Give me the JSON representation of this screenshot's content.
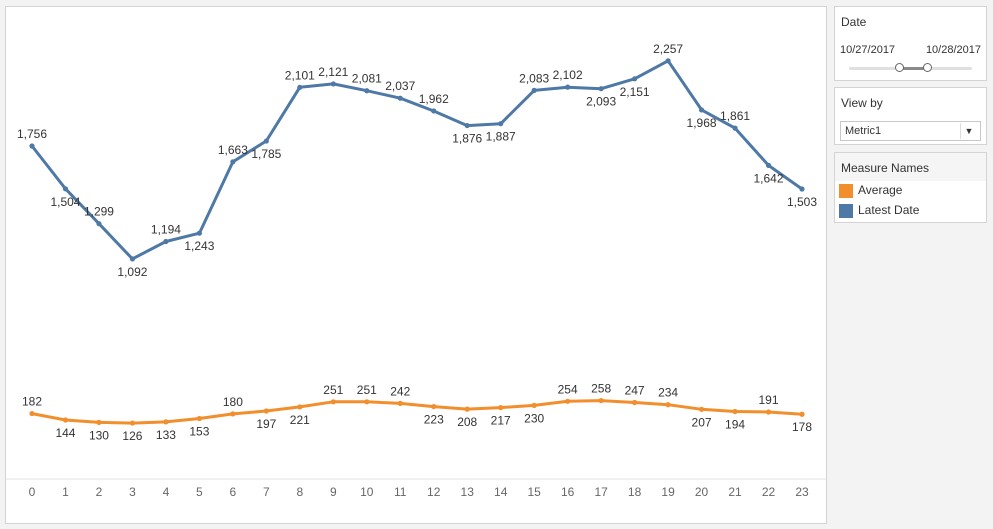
{
  "filters": {
    "date": {
      "title": "Date",
      "start": "10/27/2017",
      "end": "10/28/2017"
    },
    "view_by": {
      "title": "View by",
      "selected": "Metric1"
    }
  },
  "legend": {
    "title": "Measure Names",
    "items": [
      {
        "label": "Average",
        "color": "#f28e2b"
      },
      {
        "label": "Latest Date",
        "color": "#4e79a7"
      }
    ]
  },
  "chart_data": {
    "type": "line",
    "x": [
      0,
      1,
      2,
      3,
      4,
      5,
      6,
      7,
      8,
      9,
      10,
      11,
      12,
      13,
      14,
      15,
      16,
      17,
      18,
      19,
      20,
      21,
      22,
      23
    ],
    "x_tick_labels": [
      "0",
      "1",
      "2",
      "3",
      "4",
      "5",
      "6",
      "7",
      "8",
      "9",
      "10",
      "11",
      "12",
      "13",
      "14",
      "15",
      "16",
      "17",
      "18",
      "19",
      "20",
      "21",
      "22",
      "23"
    ],
    "series": [
      {
        "name": "Latest Date",
        "color": "#4e79a7",
        "values": [
          1756,
          1504,
          1299,
          1092,
          1194,
          1243,
          1663,
          1785,
          2101,
          2121,
          2081,
          2037,
          1962,
          1876,
          1887,
          2083,
          2102,
          2093,
          2151,
          2257,
          1968,
          1861,
          1642,
          1503
        ],
        "labels": [
          "1,756",
          "1,504",
          "1,299",
          "1,092",
          "1,194",
          "1,243",
          "1,663",
          "1,785",
          "2,101",
          "2,121",
          "2,081",
          "2,037",
          "1,962",
          "1,876",
          "1,887",
          "2,083",
          "2,102",
          "2,093",
          "2,151",
          "2,257",
          "1,968",
          "1,861",
          "1,642",
          "1,503"
        ],
        "label_pos": [
          "above",
          "below",
          "above",
          "below",
          "above",
          "below",
          "above",
          "below",
          "above",
          "above",
          "above",
          "above",
          "above",
          "below",
          "below",
          "above",
          "above",
          "below",
          "below",
          "above",
          "below",
          "above",
          "below",
          "below"
        ]
      },
      {
        "name": "Average",
        "color": "#f28e2b",
        "values": [
          182,
          144,
          130,
          126,
          133,
          153,
          180,
          197,
          221,
          251,
          251,
          242,
          223,
          208,
          217,
          230,
          254,
          258,
          247,
          234,
          207,
          194,
          191,
          178
        ],
        "labels": [
          "182",
          "144",
          "130",
          "126",
          "133",
          "153",
          "180",
          "197",
          "221",
          "251",
          "251",
          "242",
          "223",
          "208",
          "217",
          "230",
          "254",
          "258",
          "247",
          "234",
          "207",
          "194",
          "191",
          "178"
        ],
        "label_pos": [
          "above",
          "below",
          "below",
          "below",
          "below",
          "below",
          "above",
          "below",
          "below",
          "above",
          "above",
          "above",
          "below",
          "below",
          "below",
          "below",
          "above",
          "above",
          "above",
          "above",
          "below",
          "below",
          "above",
          "below"
        ]
      }
    ],
    "ylim": [
      0,
      2400
    ],
    "grid": false,
    "legend": "right"
  }
}
